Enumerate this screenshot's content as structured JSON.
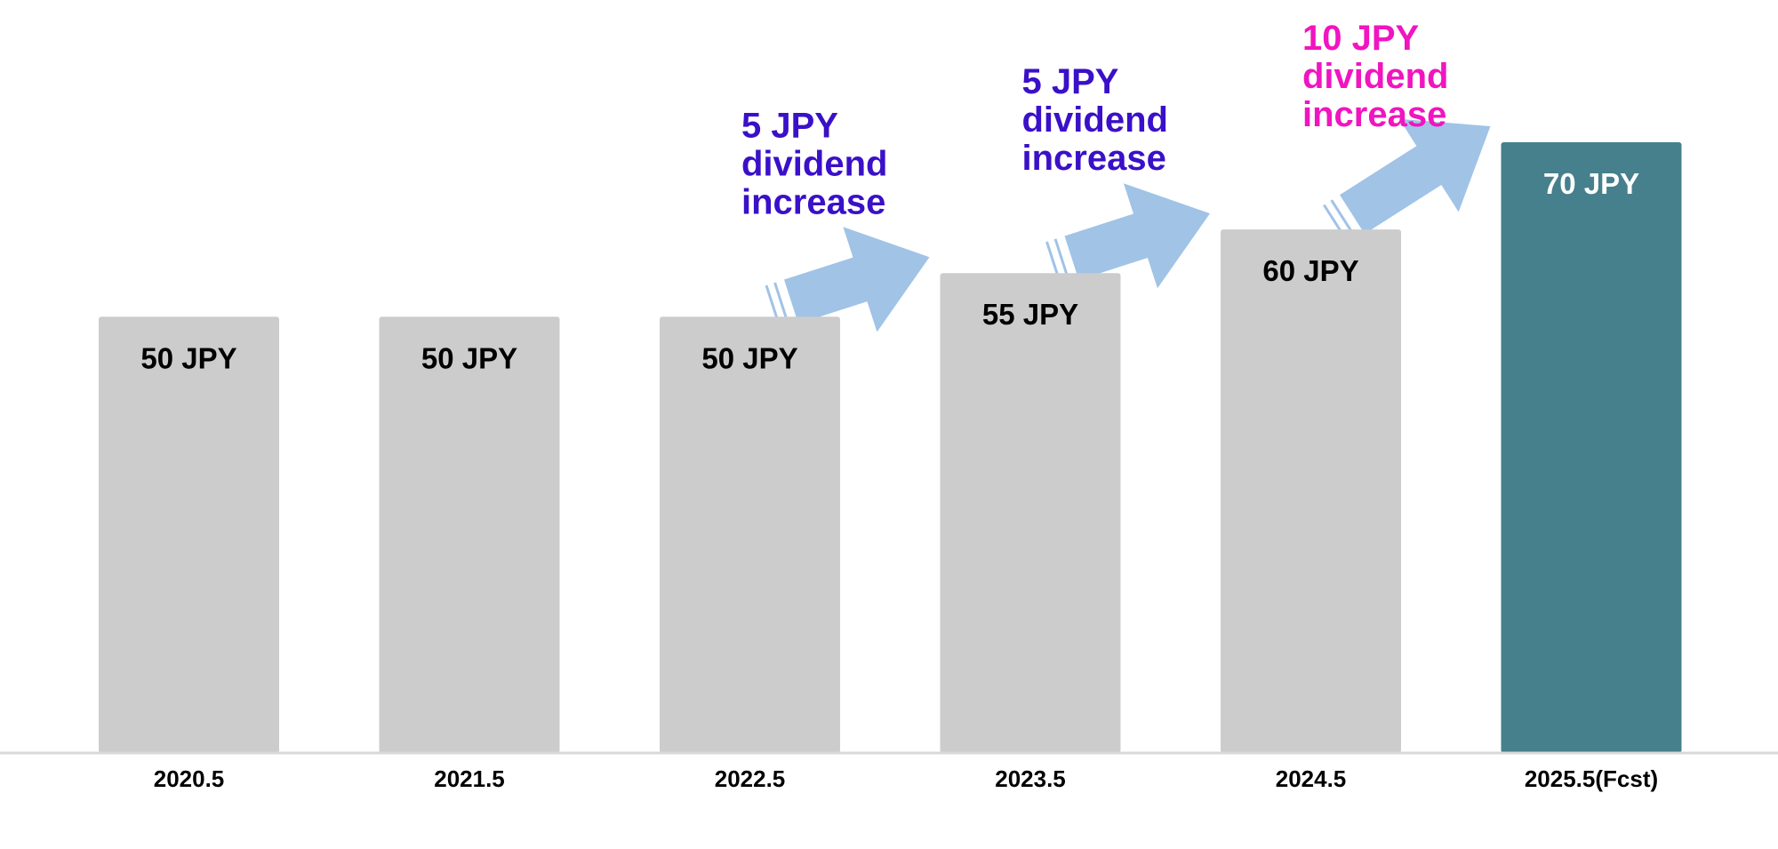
{
  "colors": {
    "past_bar": "#cccccc",
    "forecast_bar": "#45808c",
    "past_label": "#000000",
    "forecast_label": "#ffffff",
    "arrow": "#a0c3e6",
    "increase_5": "#3a10c8",
    "increase_10": "#f015c0",
    "baseline": "#d9d9d9"
  },
  "chart_data": {
    "type": "bar",
    "categories": [
      "2020.5",
      "2021.5",
      "2022.5",
      "2023.5",
      "2024.5",
      "2025.5(Fcst)"
    ],
    "values": [
      50,
      50,
      50,
      55,
      60,
      70
    ],
    "data_labels": [
      "50 JPY",
      "50 JPY",
      "50 JPY",
      "55 JPY",
      "60 JPY",
      "70 JPY"
    ],
    "forecast_index": 5,
    "ylim": [
      0,
      70
    ],
    "grid": false,
    "title": "",
    "xlabel": "",
    "ylabel": "",
    "annotations": [
      {
        "from": 2,
        "to": 3,
        "lines": [
          "5 JPY",
          "dividend",
          "increase"
        ],
        "color": "increase_5"
      },
      {
        "from": 3,
        "to": 4,
        "lines": [
          "5 JPY",
          "dividend",
          "increase"
        ],
        "color": "increase_5"
      },
      {
        "from": 4,
        "to": 5,
        "lines": [
          "10 JPY",
          "dividend",
          "increase"
        ],
        "color": "increase_10"
      }
    ]
  }
}
